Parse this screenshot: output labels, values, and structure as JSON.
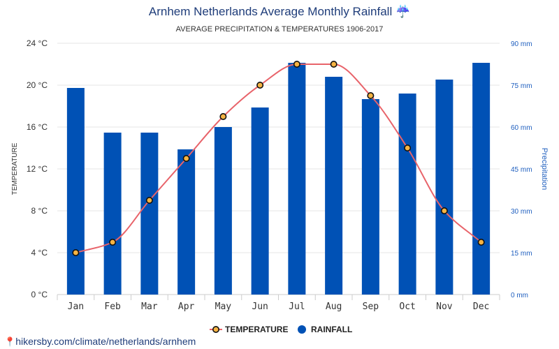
{
  "title": "Arnhem Netherlands Average Monthly Rainfall ☔",
  "subtitle": "AVERAGE PRECIPITATION & TEMPERATURES 1906-2017",
  "source": "hikersby.com/climate/netherlands/arnhem",
  "colors": {
    "title": "#1f3d7a",
    "rainfall": "#0051b5",
    "temperature_line": "#e8636a",
    "temperature_marker": "#f5b342",
    "grid": "#e6e6e6",
    "right_axis": "#1f5fbf"
  },
  "chart_data": {
    "type": "bar",
    "categories": [
      "Jan",
      "Feb",
      "Mar",
      "Apr",
      "May",
      "Jun",
      "Jul",
      "Aug",
      "Sep",
      "Oct",
      "Nov",
      "Dec"
    ],
    "series": [
      {
        "name": "RAINFALL",
        "type": "bar",
        "axis": "right",
        "unit": "mm",
        "values": [
          74,
          58,
          58,
          52,
          60,
          67,
          83,
          78,
          70,
          72,
          77,
          83
        ]
      },
      {
        "name": "TEMPERATURE",
        "type": "line",
        "axis": "left",
        "unit": "°C",
        "values": [
          4,
          5,
          9,
          13,
          17,
          20,
          22,
          22,
          19,
          14,
          8,
          5
        ]
      }
    ],
    "y_left": {
      "label": "TEMPERATURE",
      "range": [
        0,
        24
      ],
      "ticks": [
        0,
        4,
        8,
        12,
        16,
        20,
        24
      ],
      "tick_labels": [
        "0 °C",
        "4 °C",
        "8 °C",
        "12 °C",
        "16 °C",
        "20 °C",
        "24 °C"
      ]
    },
    "y_right": {
      "label": "Precipitation",
      "range": [
        0,
        90
      ],
      "ticks": [
        0,
        15,
        30,
        45,
        60,
        75,
        90
      ],
      "tick_labels": [
        "0 mm",
        "15 mm",
        "30 mm",
        "45 mm",
        "60 mm",
        "75 mm",
        "90 mm"
      ]
    },
    "grid": true,
    "legend": {
      "placement": "bottom-center",
      "items": [
        "TEMPERATURE",
        "RAINFALL"
      ]
    }
  }
}
